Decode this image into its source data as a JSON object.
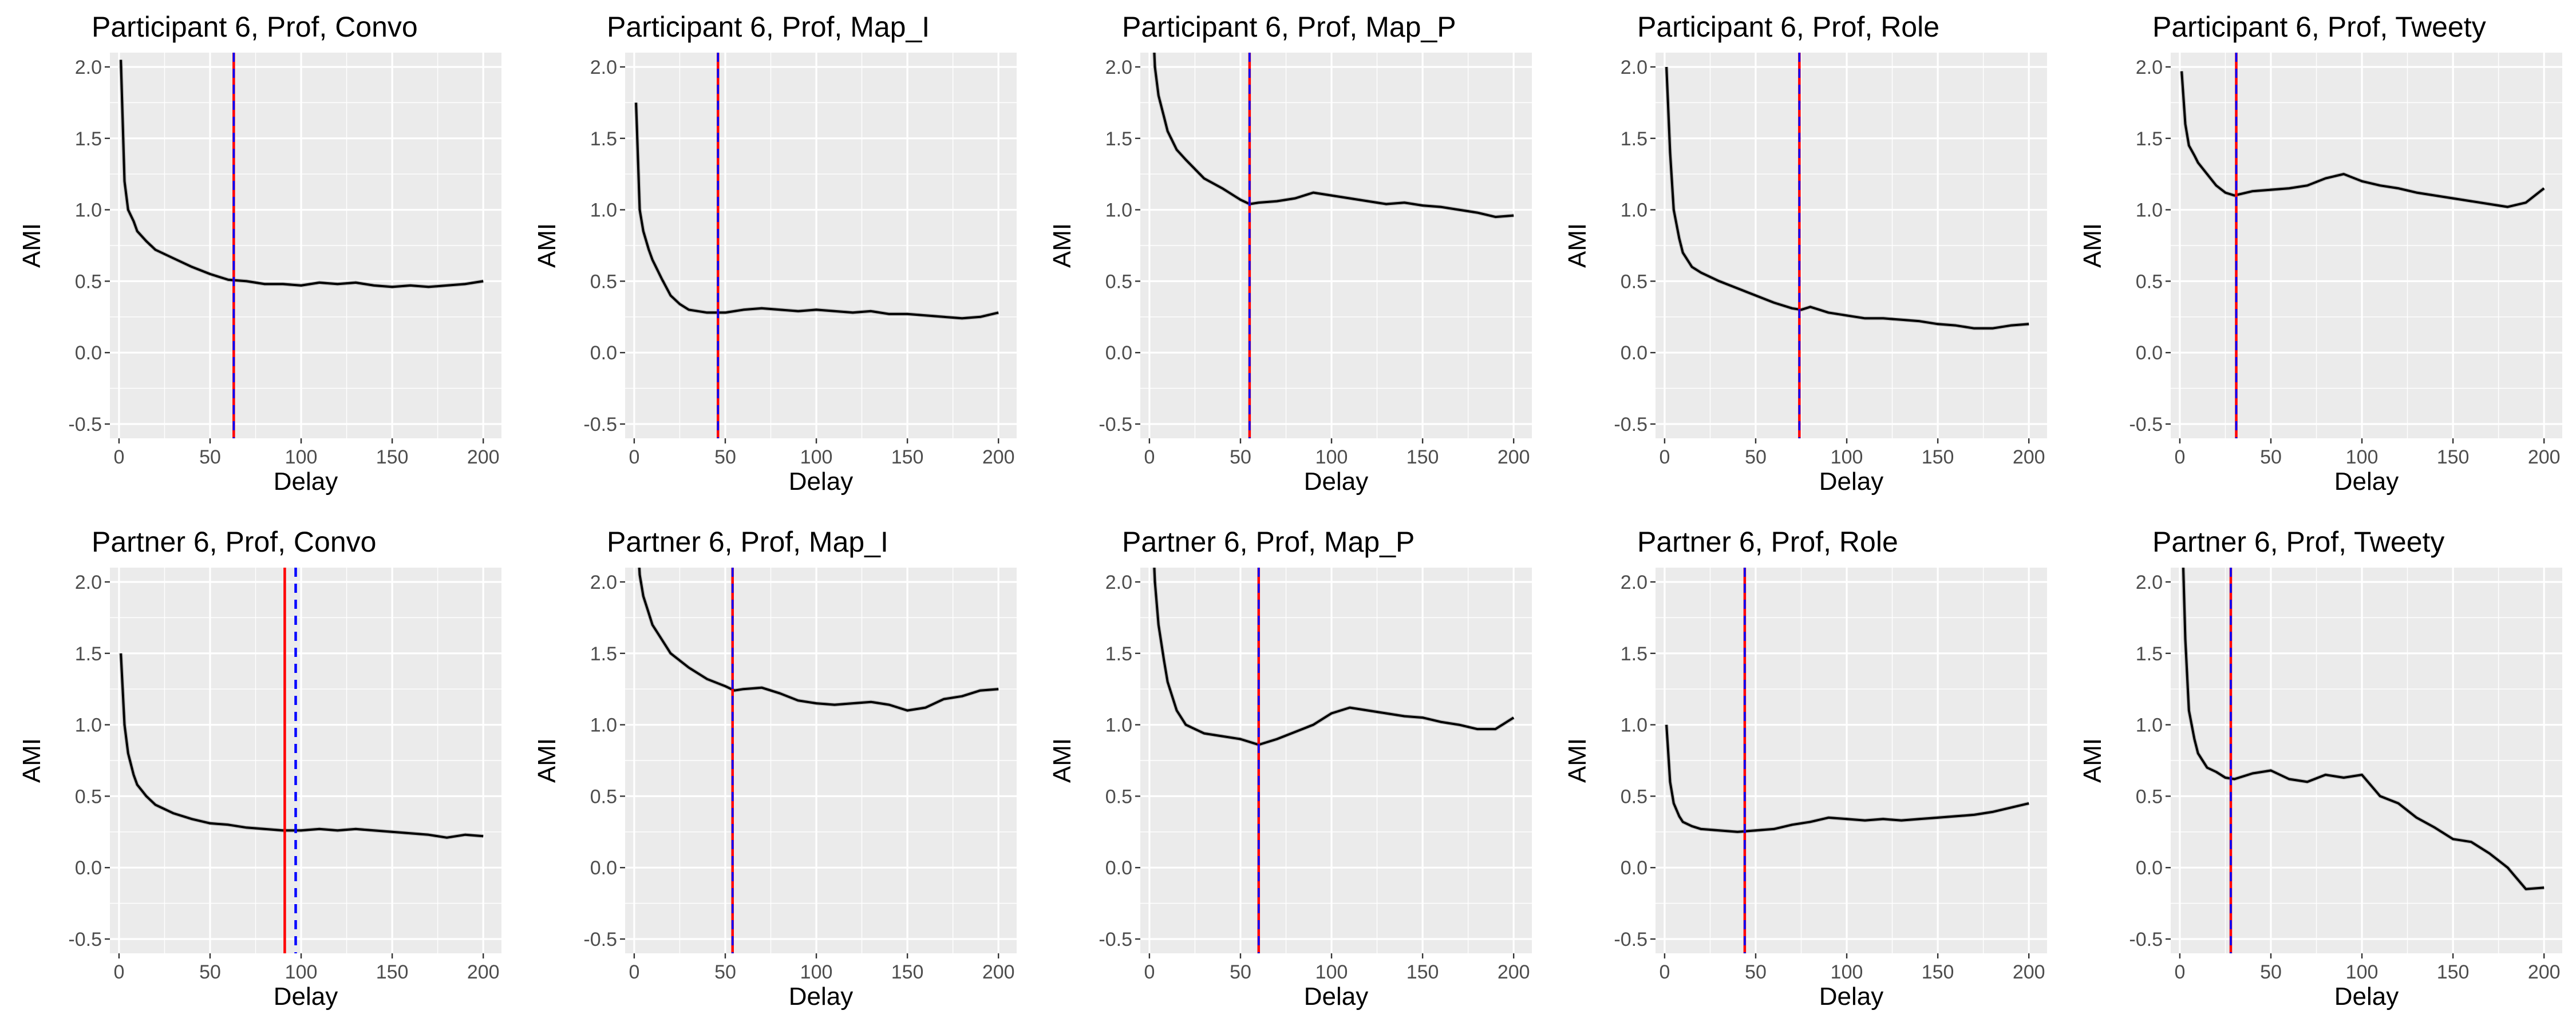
{
  "chart_data": [
    {
      "type": "line",
      "title": "Participant 6, Prof, Convo",
      "xlabel": "Delay",
      "ylabel": "AMI",
      "xlim": [
        -5,
        210
      ],
      "ylim": [
        -0.6,
        2.1
      ],
      "xticks": [
        0,
        50,
        100,
        150,
        200
      ],
      "yticks": [
        -0.5,
        0.0,
        0.5,
        1.0,
        1.5,
        2.0
      ],
      "grid": true,
      "red_line": 63,
      "blue_dashed_line": 63,
      "x": [
        1,
        3,
        5,
        8,
        10,
        15,
        20,
        30,
        40,
        50,
        60,
        70,
        80,
        90,
        100,
        110,
        120,
        130,
        140,
        150,
        160,
        170,
        180,
        190,
        200
      ],
      "y": [
        2.05,
        1.2,
        1.0,
        0.92,
        0.85,
        0.78,
        0.72,
        0.66,
        0.6,
        0.55,
        0.51,
        0.5,
        0.48,
        0.48,
        0.47,
        0.49,
        0.48,
        0.49,
        0.47,
        0.46,
        0.47,
        0.46,
        0.47,
        0.48,
        0.5
      ]
    },
    {
      "type": "line",
      "title": "Participant 6, Prof, Map_I",
      "xlabel": "Delay",
      "ylabel": "AMI",
      "xlim": [
        -5,
        210
      ],
      "ylim": [
        -0.6,
        2.1
      ],
      "xticks": [
        0,
        50,
        100,
        150,
        200
      ],
      "yticks": [
        -0.5,
        0.0,
        0.5,
        1.0,
        1.5,
        2.0
      ],
      "grid": true,
      "red_line": 46,
      "blue_dashed_line": 46,
      "x": [
        1,
        3,
        5,
        8,
        10,
        15,
        20,
        25,
        30,
        40,
        50,
        60,
        70,
        80,
        90,
        100,
        110,
        120,
        130,
        140,
        150,
        160,
        170,
        180,
        190,
        200
      ],
      "y": [
        1.75,
        1.0,
        0.85,
        0.72,
        0.65,
        0.52,
        0.4,
        0.34,
        0.3,
        0.28,
        0.28,
        0.3,
        0.31,
        0.3,
        0.29,
        0.3,
        0.29,
        0.28,
        0.29,
        0.27,
        0.27,
        0.26,
        0.25,
        0.24,
        0.25,
        0.28
      ]
    },
    {
      "type": "line",
      "title": "Participant 6, Prof, Map_P",
      "xlabel": "Delay",
      "ylabel": "AMI",
      "xlim": [
        -5,
        210
      ],
      "ylim": [
        -0.6,
        2.1
      ],
      "xticks": [
        0,
        50,
        100,
        150,
        200
      ],
      "yticks": [
        -0.5,
        0.0,
        0.5,
        1.0,
        1.5,
        2.0
      ],
      "grid": true,
      "red_line": 55,
      "blue_dashed_line": 55,
      "x": [
        1,
        3,
        5,
        8,
        10,
        15,
        20,
        30,
        40,
        50,
        55,
        60,
        70,
        80,
        90,
        100,
        110,
        120,
        130,
        140,
        150,
        160,
        170,
        180,
        190,
        200
      ],
      "y": [
        2.6,
        2.0,
        1.8,
        1.65,
        1.55,
        1.42,
        1.35,
        1.22,
        1.15,
        1.07,
        1.04,
        1.05,
        1.06,
        1.08,
        1.12,
        1.1,
        1.08,
        1.06,
        1.04,
        1.05,
        1.03,
        1.02,
        1.0,
        0.98,
        0.95,
        0.96
      ]
    },
    {
      "type": "line",
      "title": "Participant 6, Prof, Role",
      "xlabel": "Delay",
      "ylabel": "AMI",
      "xlim": [
        -5,
        210
      ],
      "ylim": [
        -0.6,
        2.1
      ],
      "xticks": [
        0,
        50,
        100,
        150,
        200
      ],
      "yticks": [
        -0.5,
        0.0,
        0.5,
        1.0,
        1.5,
        2.0
      ],
      "grid": true,
      "red_line": 74,
      "blue_dashed_line": 74,
      "x": [
        1,
        3,
        5,
        8,
        10,
        15,
        20,
        30,
        40,
        50,
        60,
        70,
        75,
        80,
        90,
        100,
        110,
        120,
        130,
        140,
        150,
        160,
        170,
        180,
        190,
        200
      ],
      "y": [
        2.0,
        1.4,
        1.0,
        0.8,
        0.7,
        0.6,
        0.56,
        0.5,
        0.45,
        0.4,
        0.35,
        0.31,
        0.3,
        0.32,
        0.28,
        0.26,
        0.24,
        0.24,
        0.23,
        0.22,
        0.2,
        0.19,
        0.17,
        0.17,
        0.19,
        0.2
      ]
    },
    {
      "type": "line",
      "title": "Participant 6, Prof, Tweety",
      "xlabel": "Delay",
      "ylabel": "AMI",
      "xlim": [
        -5,
        210
      ],
      "ylim": [
        -0.6,
        2.1
      ],
      "xticks": [
        0,
        50,
        100,
        150,
        200
      ],
      "yticks": [
        -0.5,
        0.0,
        0.5,
        1.0,
        1.5,
        2.0
      ],
      "grid": true,
      "red_line": 31,
      "blue_dashed_line": 31,
      "x": [
        1,
        3,
        5,
        8,
        10,
        15,
        20,
        25,
        30,
        40,
        50,
        60,
        70,
        80,
        90,
        100,
        110,
        120,
        130,
        140,
        150,
        160,
        170,
        180,
        190,
        200
      ],
      "y": [
        1.97,
        1.6,
        1.45,
        1.38,
        1.33,
        1.25,
        1.17,
        1.12,
        1.1,
        1.13,
        1.14,
        1.15,
        1.17,
        1.22,
        1.25,
        1.2,
        1.17,
        1.15,
        1.12,
        1.1,
        1.08,
        1.06,
        1.04,
        1.02,
        1.05,
        1.15
      ]
    },
    {
      "type": "line",
      "title": "Partner 6, Prof, Convo",
      "xlabel": "Delay",
      "ylabel": "AMI",
      "xlim": [
        -5,
        210
      ],
      "ylim": [
        -0.6,
        2.1
      ],
      "xticks": [
        0,
        50,
        100,
        150,
        200
      ],
      "yticks": [
        -0.5,
        0.0,
        0.5,
        1.0,
        1.5,
        2.0
      ],
      "grid": true,
      "red_line": 91,
      "blue_dashed_line": 97,
      "x": [
        1,
        3,
        5,
        8,
        10,
        15,
        20,
        30,
        40,
        50,
        60,
        70,
        80,
        90,
        100,
        110,
        120,
        130,
        140,
        150,
        160,
        170,
        180,
        190,
        200
      ],
      "y": [
        1.5,
        1.0,
        0.8,
        0.65,
        0.58,
        0.5,
        0.44,
        0.38,
        0.34,
        0.31,
        0.3,
        0.28,
        0.27,
        0.26,
        0.26,
        0.27,
        0.26,
        0.27,
        0.26,
        0.25,
        0.24,
        0.23,
        0.21,
        0.23,
        0.22
      ]
    },
    {
      "type": "line",
      "title": "Partner 6, Prof, Map_I",
      "xlabel": "Delay",
      "ylabel": "AMI",
      "xlim": [
        -5,
        210
      ],
      "ylim": [
        -0.6,
        2.1
      ],
      "xticks": [
        0,
        50,
        100,
        150,
        200
      ],
      "yticks": [
        -0.5,
        0.0,
        0.5,
        1.0,
        1.5,
        2.0
      ],
      "grid": true,
      "red_line": 54,
      "blue_dashed_line": 54,
      "x": [
        1,
        3,
        5,
        8,
        10,
        15,
        20,
        30,
        40,
        50,
        55,
        60,
        70,
        80,
        90,
        100,
        110,
        120,
        130,
        140,
        150,
        160,
        170,
        180,
        190,
        200
      ],
      "y": [
        2.5,
        2.05,
        1.9,
        1.78,
        1.7,
        1.6,
        1.5,
        1.4,
        1.32,
        1.27,
        1.24,
        1.25,
        1.26,
        1.22,
        1.17,
        1.15,
        1.14,
        1.15,
        1.16,
        1.14,
        1.1,
        1.12,
        1.18,
        1.2,
        1.24,
        1.25
      ]
    },
    {
      "type": "line",
      "title": "Partner 6, Prof, Map_P",
      "xlabel": "Delay",
      "ylabel": "AMI",
      "xlim": [
        -5,
        210
      ],
      "ylim": [
        -0.6,
        2.1
      ],
      "xticks": [
        0,
        50,
        100,
        150,
        200
      ],
      "yticks": [
        -0.5,
        0.0,
        0.5,
        1.0,
        1.5,
        2.0
      ],
      "grid": true,
      "red_line": 60,
      "blue_dashed_line": 60,
      "x": [
        1,
        3,
        5,
        8,
        10,
        15,
        20,
        30,
        40,
        50,
        60,
        70,
        80,
        90,
        100,
        110,
        120,
        130,
        140,
        150,
        160,
        170,
        180,
        190,
        200
      ],
      "y": [
        2.6,
        2.0,
        1.7,
        1.45,
        1.3,
        1.1,
        1.0,
        0.94,
        0.92,
        0.9,
        0.86,
        0.9,
        0.95,
        1.0,
        1.08,
        1.12,
        1.1,
        1.08,
        1.06,
        1.05,
        1.02,
        1.0,
        0.97,
        0.97,
        1.05
      ]
    },
    {
      "type": "line",
      "title": "Partner 6, Prof, Role",
      "xlabel": "Delay",
      "ylabel": "AMI",
      "xlim": [
        -5,
        210
      ],
      "ylim": [
        -0.6,
        2.1
      ],
      "xticks": [
        0,
        50,
        100,
        150,
        200
      ],
      "yticks": [
        -0.5,
        0.0,
        0.5,
        1.0,
        1.5,
        2.0
      ],
      "grid": true,
      "red_line": 44,
      "blue_dashed_line": 44,
      "x": [
        1,
        3,
        5,
        8,
        10,
        15,
        20,
        30,
        40,
        50,
        60,
        70,
        80,
        90,
        100,
        110,
        120,
        130,
        140,
        150,
        160,
        170,
        180,
        190,
        200
      ],
      "y": [
        1.0,
        0.6,
        0.45,
        0.36,
        0.32,
        0.29,
        0.27,
        0.26,
        0.25,
        0.26,
        0.27,
        0.3,
        0.32,
        0.35,
        0.34,
        0.33,
        0.34,
        0.33,
        0.34,
        0.35,
        0.36,
        0.37,
        0.39,
        0.42,
        0.45
      ]
    },
    {
      "type": "line",
      "title": "Partner 6, Prof, Tweety",
      "xlabel": "Delay",
      "ylabel": "AMI",
      "xlim": [
        -5,
        210
      ],
      "ylim": [
        -0.6,
        2.1
      ],
      "xticks": [
        0,
        50,
        100,
        150,
        200
      ],
      "yticks": [
        -0.5,
        0.0,
        0.5,
        1.0,
        1.5,
        2.0
      ],
      "grid": true,
      "red_line": 28,
      "blue_dashed_line": 28,
      "x": [
        1,
        3,
        5,
        8,
        10,
        15,
        20,
        25,
        30,
        40,
        50,
        60,
        70,
        80,
        90,
        100,
        110,
        120,
        130,
        140,
        150,
        160,
        170,
        180,
        190,
        200
      ],
      "y": [
        2.5,
        1.6,
        1.1,
        0.9,
        0.8,
        0.7,
        0.67,
        0.63,
        0.62,
        0.66,
        0.68,
        0.62,
        0.6,
        0.65,
        0.63,
        0.65,
        0.5,
        0.45,
        0.35,
        0.28,
        0.2,
        0.18,
        0.1,
        0.0,
        -0.15,
        -0.14
      ]
    }
  ]
}
